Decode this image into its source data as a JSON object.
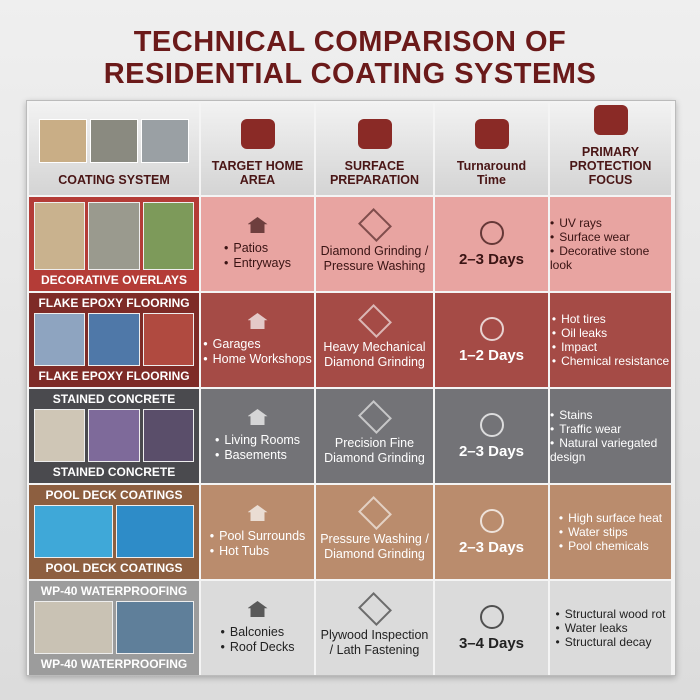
{
  "title_lines": [
    "TECHNICAL COMPARISON OF",
    "RESIDENTIAL COATING SYSTEMS"
  ],
  "headers": [
    "COATING SYSTEM",
    "TARGET HOME AREA",
    "SURFACE PREPARATION",
    "Turnaround Time",
    "PRIMARY PROTECTION FOCUS"
  ],
  "rows": [
    {
      "name": "DECORATIVE OVERLAYS",
      "areas": [
        "Patios",
        "Entryways"
      ],
      "preparation": "Diamond Grinding / Pressure Washing",
      "turnaround": "2–3 Days",
      "focus": [
        "UV rays",
        "Surface wear",
        "Decorative stone look"
      ]
    },
    {
      "name": "FLAKE EPOXY FLOORING",
      "areas": [
        "Garages",
        "Home Workshops"
      ],
      "preparation": "Heavy Mechanical Diamond Grinding",
      "turnaround": "1–2 Days",
      "focus": [
        "Hot tires",
        "Oil leaks",
        "Impact",
        "Chemical resistance"
      ]
    },
    {
      "name": "STAINED CONCRETE",
      "areas": [
        "Living Rooms",
        "Basements"
      ],
      "preparation": "Precision Fine Diamond Grinding",
      "turnaround": "2–3 Days",
      "focus": [
        "Stains",
        "Traffic wear",
        "Natural variegated design"
      ]
    },
    {
      "name": "POOL DECK COATINGS",
      "areas": [
        "Pool Surrounds",
        "Hot Tubs"
      ],
      "preparation": "Pressure Washing / Diamond Grinding",
      "turnaround": "2–3 Days",
      "focus": [
        "High surface heat",
        "Water stips",
        "Pool chemicals"
      ]
    },
    {
      "name": "WP-40 WATERPROOFING",
      "areas": [
        "Balconies",
        "Roof Decks"
      ],
      "preparation": "Plywood Inspection / Lath Fastening",
      "turnaround": "3–4 Days",
      "focus": [
        "Structural wood rot",
        "Water leaks",
        "Structural decay"
      ]
    }
  ]
}
